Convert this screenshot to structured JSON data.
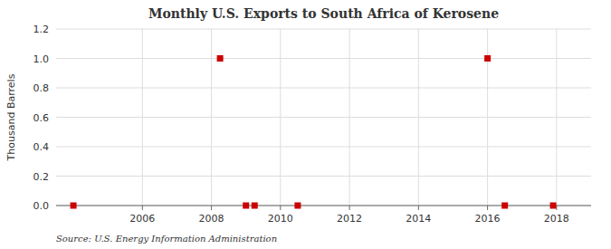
{
  "chart_data": {
    "type": "scatter",
    "title": "Monthly U.S. Exports to South Africa of Kerosene",
    "y_label": "Thousand Barrels",
    "source": "Source: U.S. Energy Information Administration",
    "x": [
      2004.0,
      2008.25,
      2009.0,
      2009.25,
      2010.5,
      2016.0,
      2016.5,
      2017.9
    ],
    "values": [
      0.0,
      1.0,
      0.0,
      0.0,
      0.0,
      1.0,
      0.0,
      0.0
    ],
    "color": "#cc0000",
    "marker": "square",
    "xlim": [
      2003.5,
      2019.0
    ],
    "ylim": [
      0,
      1.2
    ],
    "xticks": [
      2006,
      2008,
      2010,
      2012,
      2014,
      2016,
      2018
    ],
    "yticks": [
      {
        "value": 0.0,
        "label": "0.0"
      },
      0.2,
      0.4,
      0.6,
      0.8,
      {
        "value": 1.0,
        "label": "1.0"
      },
      1.2
    ],
    "grid": true
  }
}
